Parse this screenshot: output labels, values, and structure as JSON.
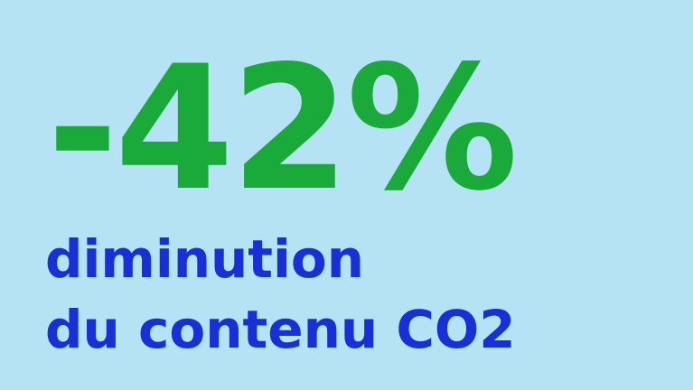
{
  "stat": {
    "value": "-42%",
    "color": "#1aaa3a"
  },
  "caption": {
    "line1": "diminution",
    "line2": "du contenu CO2",
    "color": "#1a2fd8"
  },
  "background_color": "#b5e3f4"
}
